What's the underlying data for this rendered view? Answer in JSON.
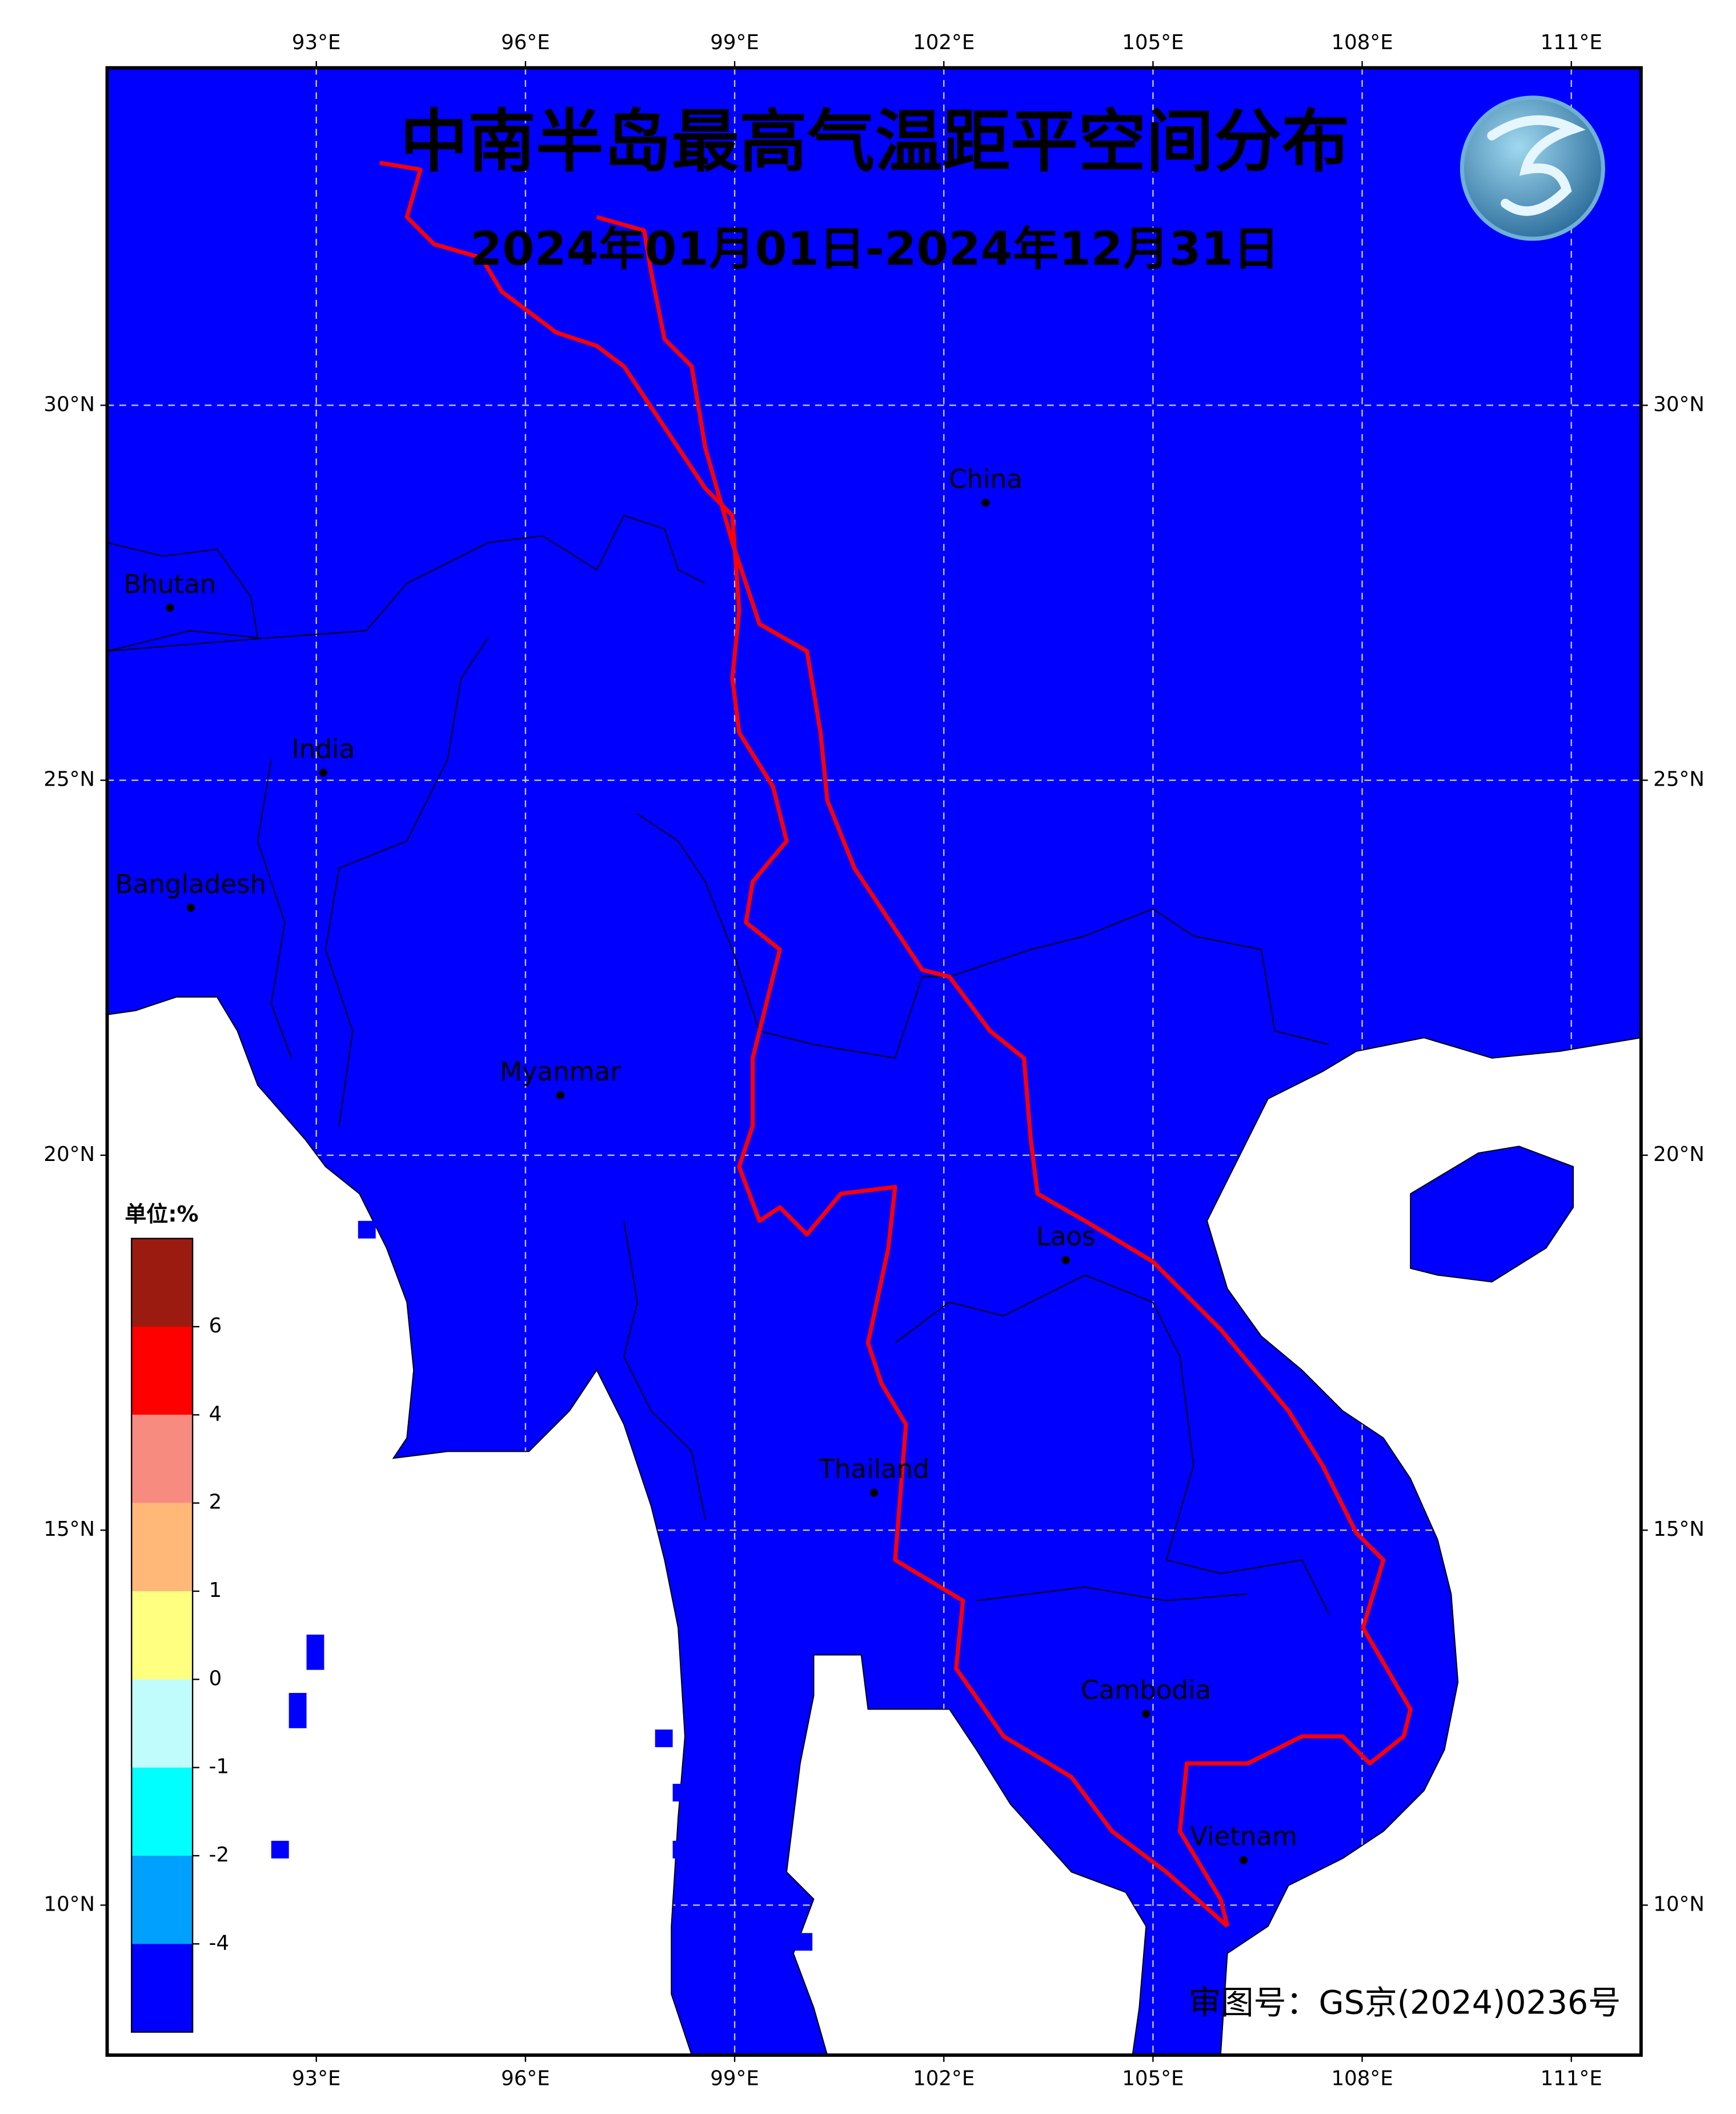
{
  "title": "中南半岛最高气温距平空间分布",
  "subtitle": "2024年01月01日-2024年12月31日",
  "approval": "审图号：GS京(2024)0236号",
  "map": {
    "xlim": [
      90,
      112
    ],
    "ylim": [
      8,
      34.5
    ],
    "xticks": [
      {
        "value": 93,
        "label": "93°E"
      },
      {
        "value": 96,
        "label": "96°E"
      },
      {
        "value": 99,
        "label": "99°E"
      },
      {
        "value": 102,
        "label": "102°E"
      },
      {
        "value": 105,
        "label": "105°E"
      },
      {
        "value": 108,
        "label": "108°E"
      },
      {
        "value": 111,
        "label": "111°E"
      }
    ],
    "yticks": [
      {
        "value": 10,
        "label": "10°N"
      },
      {
        "value": 15,
        "label": "15°N"
      },
      {
        "value": 20,
        "label": "20°N"
      },
      {
        "value": 25,
        "label": "25°N"
      },
      {
        "value": 30,
        "label": "30°N"
      }
    ],
    "grid": true,
    "fill_color": "#0000ff",
    "border_color": "#ff0000",
    "places": [
      {
        "name": "China",
        "lon": 102.6,
        "lat": 28.7
      },
      {
        "name": "Bhutan",
        "lon": 90.9,
        "lat": 27.3
      },
      {
        "name": "India",
        "lon": 93.1,
        "lat": 25.1
      },
      {
        "name": "Bangladesh",
        "lon": 91.2,
        "lat": 23.3
      },
      {
        "name": "Myanmar",
        "lon": 96.5,
        "lat": 20.8
      },
      {
        "name": "Laos",
        "lon": 103.75,
        "lat": 18.6
      },
      {
        "name": "Thailand",
        "lon": 101.0,
        "lat": 15.5
      },
      {
        "name": "Cambodia",
        "lon": 104.9,
        "lat": 12.55
      },
      {
        "name": "Vietnam",
        "lon": 106.3,
        "lat": 10.6
      }
    ]
  },
  "colorbar": {
    "label": "单位:%",
    "colors": [
      "#9b1b10",
      "#ff0000",
      "#f88b80",
      "#ffb878",
      "#ffff80",
      "#c0fcfc",
      "#00ffff",
      "#00a0ff",
      "#0000ff"
    ],
    "ticks": [
      6,
      4,
      2,
      1,
      0,
      -1,
      -2,
      -4
    ]
  }
}
